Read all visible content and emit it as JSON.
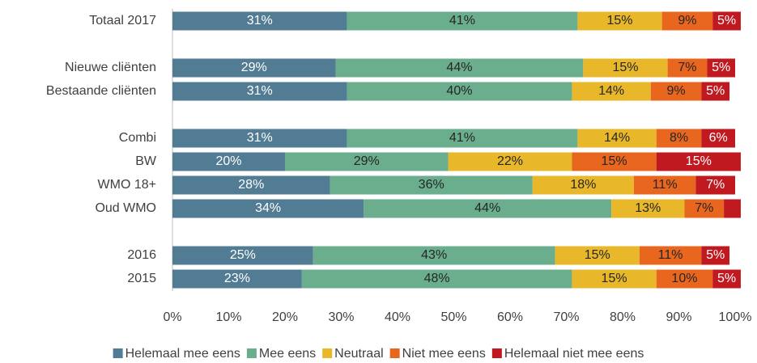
{
  "chart_data": {
    "type": "stacked-barh",
    "categories": [
      "Totaal 2017",
      null,
      "Nieuwe cliënten",
      "Bestaande cliënten",
      null,
      "Combi",
      "BW",
      "WMO 18+",
      "Oud WMO",
      null,
      "2016",
      "2015"
    ],
    "series": [
      {
        "name": "Helemaal mee eens",
        "color": "#527b94",
        "values": [
          31,
          null,
          29,
          31,
          null,
          31,
          20,
          28,
          34,
          null,
          25,
          23
        ],
        "value_labels": [
          "31%",
          null,
          "29%",
          "31%",
          null,
          "31%",
          "20%",
          "28%",
          "34%",
          null,
          "25%",
          "23%"
        ]
      },
      {
        "name": "Mee eens",
        "color": "#6aae8e",
        "values": [
          41,
          null,
          44,
          40,
          null,
          41,
          29,
          36,
          44,
          null,
          43,
          48
        ],
        "value_labels": [
          "41%",
          null,
          "44%",
          "40%",
          null,
          "41%",
          "29%",
          "36%",
          "44%",
          null,
          "43%",
          "48%"
        ]
      },
      {
        "name": "Neutraal",
        "color": "#e8b82a",
        "values": [
          15,
          null,
          15,
          14,
          null,
          14,
          22,
          18,
          13,
          null,
          15,
          15
        ],
        "value_labels": [
          "15%",
          null,
          "15%",
          "14%",
          null,
          "14%",
          "22%",
          "18%",
          "13%",
          null,
          "15%",
          "15%"
        ]
      },
      {
        "name": "Niet mee eens",
        "color": "#e8661e",
        "values": [
          9,
          null,
          7,
          9,
          null,
          8,
          15,
          11,
          7,
          null,
          11,
          10
        ],
        "value_labels": [
          "9%",
          null,
          "7%",
          "9%",
          null,
          "8%",
          "15%",
          "11%",
          "7%",
          null,
          "11%",
          "10%"
        ]
      },
      {
        "name": "Helemaal niet mee eens",
        "color": "#c0191f",
        "values": [
          5,
          null,
          5,
          5,
          null,
          6,
          15,
          7,
          3,
          null,
          5,
          5
        ],
        "value_labels": [
          "5%",
          null,
          "5%",
          "5%",
          null,
          "6%",
          "15%",
          "7%",
          null,
          null,
          "5%",
          "5%"
        ]
      }
    ],
    "xlim": [
      0,
      100
    ],
    "xticks": [
      {
        "value": 0,
        "label": "0%"
      },
      {
        "value": 10,
        "label": "10%"
      },
      {
        "value": 20,
        "label": "20%"
      },
      {
        "value": 30,
        "label": "30%"
      },
      {
        "value": 40,
        "label": "40%"
      },
      {
        "value": 50,
        "label": "50%"
      },
      {
        "value": 60,
        "label": "60%"
      },
      {
        "value": 70,
        "label": "70%"
      },
      {
        "value": 80,
        "label": "80%"
      },
      {
        "value": 90,
        "label": "90%"
      },
      {
        "value": 100,
        "label": "100%"
      }
    ],
    "legend": "bottom"
  }
}
